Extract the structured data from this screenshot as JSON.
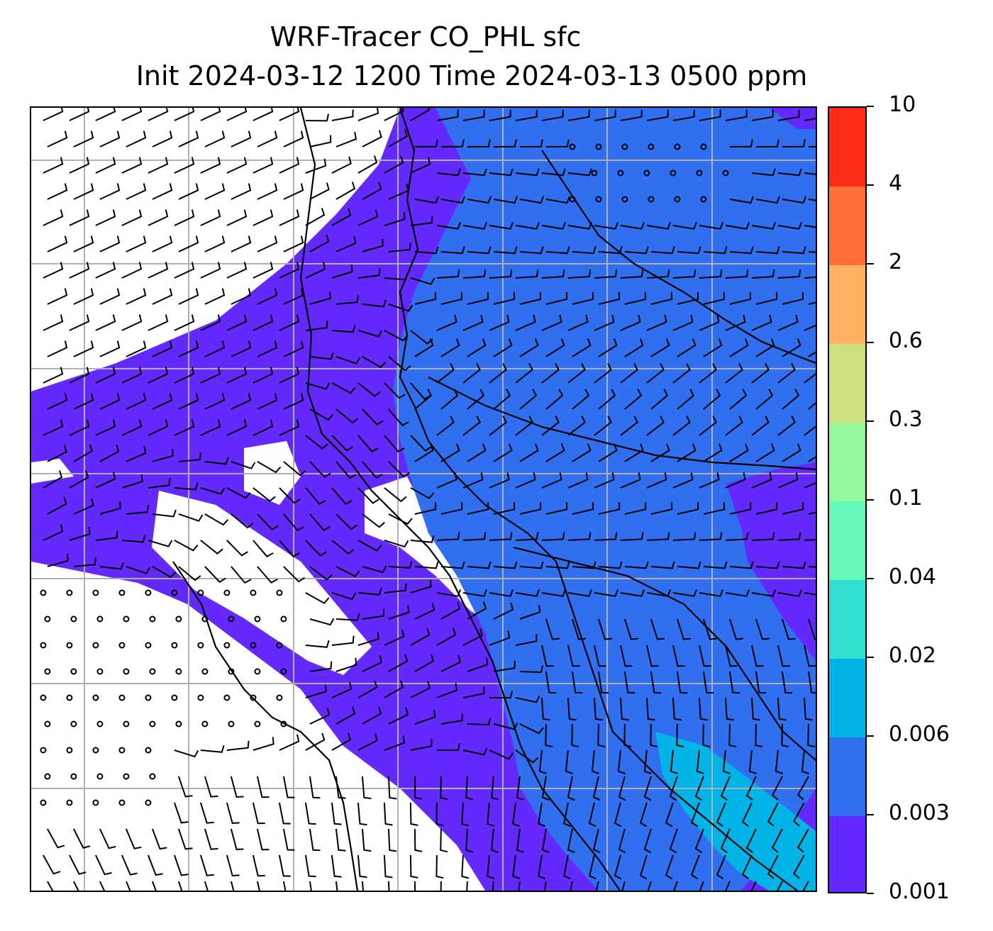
{
  "title": {
    "line1": "WRF-Tracer CO_PHL sfc",
    "line2": "Init 2024-03-12 1200 Time 2024-03-13 0500 ppm"
  },
  "map": {
    "background_color": "#ffffff",
    "gridline_color": "#b0b0b0",
    "coastline_color": "#000000",
    "barb_color": "#000000",
    "grid_columns": 8,
    "grid_rows": 8
  },
  "colorbar": {
    "levels": [
      "0.001",
      "0.003",
      "0.006",
      "0.02",
      "0.04",
      "0.1",
      "0.3",
      "0.6",
      "2",
      "4",
      "10"
    ],
    "colors": [
      "#6429ff",
      "#3070f0",
      "#00b4e8",
      "#30e0d0",
      "#66f8b8",
      "#94f89a",
      "#cce080",
      "#ffb060",
      "#ff7038",
      "#ff2c18"
    ]
  }
}
